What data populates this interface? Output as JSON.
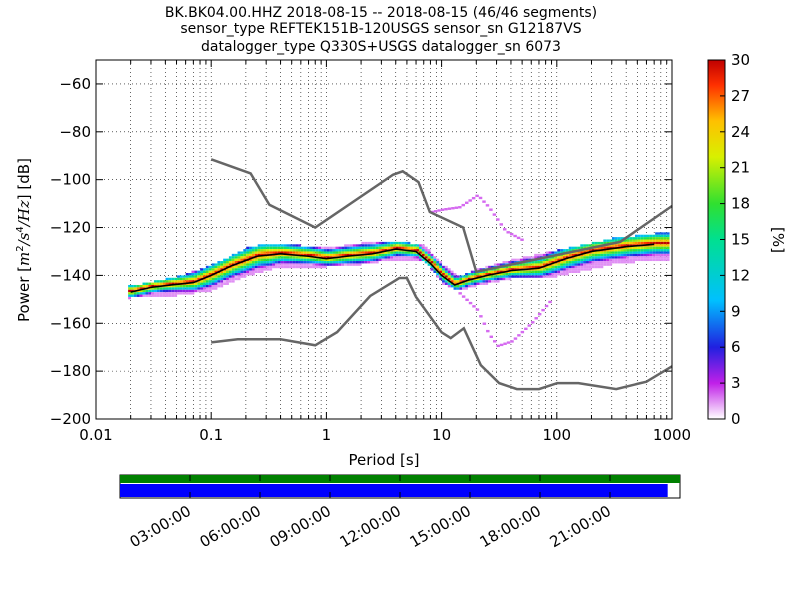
{
  "title_lines": [
    "BK.BK04.00.HHZ   2018-08-15 -- 2018-08-15  (46/46 segments)",
    "sensor_type REFTEK151B-120USGS sensor_sn G12187VS",
    "datalogger_type Q330S+USGS datalogger_sn 6073"
  ],
  "xlabel": "Period [s]",
  "ylabel_parts": [
    "Power [",
    "m",
    "2",
    "/",
    "s",
    "4",
    "/",
    "Hz",
    "] [dB]"
  ],
  "colorbar": {
    "label": "[%]",
    "ticks": [
      "0",
      "3",
      "6",
      "9",
      "12",
      "15",
      "18",
      "21",
      "24",
      "27",
      "30"
    ],
    "range": [
      0,
      30
    ]
  },
  "time_axis": {
    "labels": [
      "03:00:00",
      "06:00:00",
      "09:00:00",
      "12:00:00",
      "15:00:00",
      "18:00:00",
      "21:00:00"
    ],
    "coverage_colors": {
      "top": "#008000",
      "bottom": "#0000ff"
    },
    "coverage_fraction": 0.978
  },
  "chart_data": {
    "type": "heatmap",
    "x_scale": "log",
    "xlim": [
      0.01,
      1000
    ],
    "ylim": [
      -200,
      -50
    ],
    "x_ticks": [
      {
        "value": 0.01,
        "label": "0.01"
      },
      {
        "value": 0.1,
        "label": "0.1"
      },
      {
        "value": 1,
        "label": "1"
      },
      {
        "value": 10,
        "label": "10"
      },
      {
        "value": 100,
        "label": "100"
      },
      {
        "value": 1000,
        "label": "1000"
      }
    ],
    "y_ticks": [
      {
        "value": -60,
        "label": "−60"
      },
      {
        "value": -80,
        "label": "−80"
      },
      {
        "value": -100,
        "label": "−100"
      },
      {
        "value": -120,
        "label": "−120"
      },
      {
        "value": -140,
        "label": "−140"
      },
      {
        "value": -160,
        "label": "−160"
      },
      {
        "value": -180,
        "label": "−180"
      },
      {
        "value": -200,
        "label": "−200"
      }
    ],
    "grid": true,
    "noise_models": {
      "high": [
        [
          0.1,
          -91.5
        ],
        [
          0.22,
          -97.4
        ],
        [
          0.32,
          -110.5
        ],
        [
          0.8,
          -120
        ],
        [
          3.8,
          -97.9
        ],
        [
          4.6,
          -96.5
        ],
        [
          6.3,
          -101
        ],
        [
          7.9,
          -113.5
        ],
        [
          15.4,
          -120
        ],
        [
          20,
          -138.5
        ],
        [
          354.8,
          -126
        ],
        [
          1000,
          -111
        ]
      ],
      "low": [
        [
          0.1,
          -168
        ],
        [
          0.17,
          -166.7
        ],
        [
          0.4,
          -166.7
        ],
        [
          0.8,
          -169.2
        ],
        [
          1.24,
          -163.7
        ],
        [
          2.4,
          -148.6
        ],
        [
          4.3,
          -141.1
        ],
        [
          5,
          -141.1
        ],
        [
          6,
          -149
        ],
        [
          10,
          -163.8
        ],
        [
          12,
          -166.2
        ],
        [
          15.6,
          -162.1
        ],
        [
          21.9,
          -177.5
        ],
        [
          31.6,
          -185
        ],
        [
          45,
          -187.5
        ],
        [
          70,
          -187.5
        ],
        [
          101,
          -185
        ],
        [
          154,
          -185
        ],
        [
          328,
          -187.5
        ],
        [
          600,
          -184.4
        ],
        [
          1000,
          -178
        ]
      ]
    },
    "series": [
      {
        "name": "",
        "role": "mode",
        "values": [
          [
            0.02,
            -147
          ],
          [
            0.03,
            -145
          ],
          [
            0.045,
            -144
          ],
          [
            0.07,
            -143
          ],
          [
            0.1,
            -140
          ],
          [
            0.15,
            -136
          ],
          [
            0.25,
            -132
          ],
          [
            0.4,
            -131
          ],
          [
            0.7,
            -132
          ],
          [
            1,
            -133
          ],
          [
            1.5,
            -132
          ],
          [
            2.5,
            -131
          ],
          [
            4,
            -129
          ],
          [
            6,
            -130
          ],
          [
            8,
            -135
          ],
          [
            10,
            -140
          ],
          [
            13,
            -144
          ],
          [
            17,
            -142
          ],
          [
            25,
            -140
          ],
          [
            40,
            -138
          ],
          [
            70,
            -137
          ],
          [
            120,
            -133
          ],
          [
            200,
            -130
          ],
          [
            400,
            -128
          ],
          [
            700,
            -127
          ]
        ]
      },
      {
        "name": "",
        "role": "spread-upper",
        "values": [
          [
            0.02,
            -145
          ],
          [
            0.05,
            -141
          ],
          [
            0.1,
            -136
          ],
          [
            0.2,
            -129
          ],
          [
            0.3,
            -127
          ],
          [
            0.6,
            -128
          ],
          [
            1,
            -129
          ],
          [
            2,
            -127
          ],
          [
            4,
            -126
          ],
          [
            7,
            -128
          ],
          [
            10,
            -136
          ],
          [
            14,
            -141
          ],
          [
            20,
            -138
          ],
          [
            40,
            -134
          ],
          [
            100,
            -130
          ],
          [
            300,
            -125
          ],
          [
            700,
            -123
          ]
        ]
      },
      {
        "name": "",
        "role": "spread-lower",
        "values": [
          [
            0.02,
            -149
          ],
          [
            0.05,
            -148
          ],
          [
            0.1,
            -146
          ],
          [
            0.2,
            -140
          ],
          [
            0.4,
            -136
          ],
          [
            1,
            -136
          ],
          [
            2,
            -135
          ],
          [
            4,
            -133
          ],
          [
            7,
            -134
          ],
          [
            10,
            -143
          ],
          [
            14,
            -146
          ],
          [
            20,
            -144
          ],
          [
            40,
            -141
          ],
          [
            100,
            -140
          ],
          [
            300,
            -135
          ],
          [
            700,
            -133
          ]
        ]
      },
      {
        "name": "",
        "role": "sparse-upper",
        "values": [
          [
            8,
            -114
          ],
          [
            10,
            -113
          ],
          [
            14,
            -112
          ],
          [
            20,
            -107
          ],
          [
            25,
            -112
          ],
          [
            35,
            -122
          ],
          [
            50,
            -126
          ]
        ]
      },
      {
        "name": "",
        "role": "sparse-lower",
        "values": [
          [
            14,
            -148
          ],
          [
            20,
            -155
          ],
          [
            25,
            -165
          ],
          [
            30,
            -170
          ],
          [
            40,
            -168
          ],
          [
            60,
            -160
          ],
          [
            90,
            -150
          ]
        ]
      }
    ]
  }
}
